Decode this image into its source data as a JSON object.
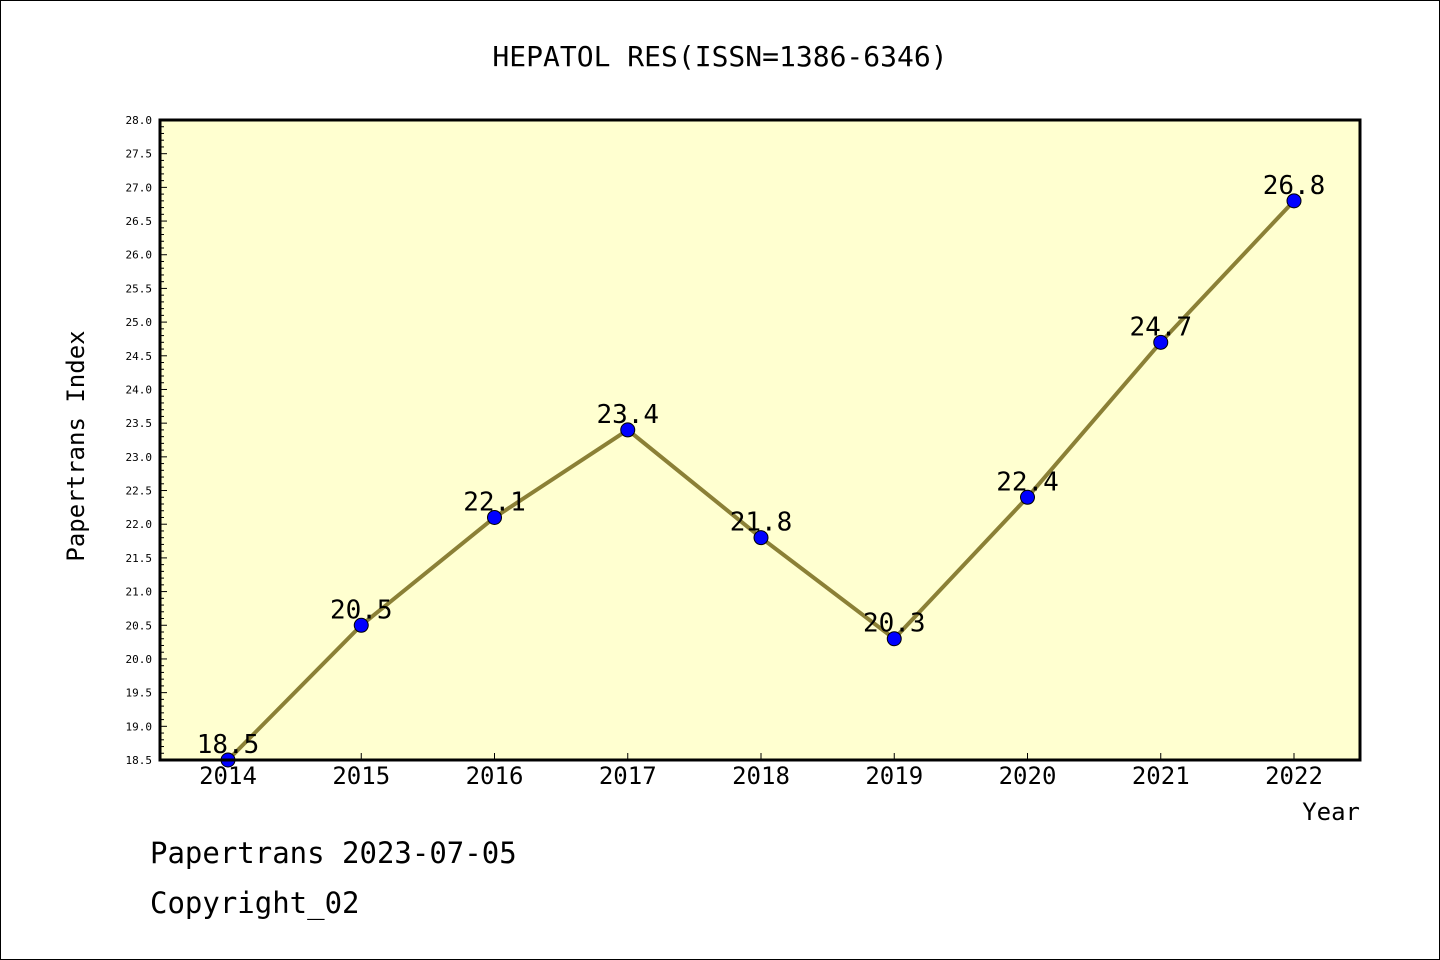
{
  "chart_data": {
    "type": "line",
    "title": "HEPATOL RES(ISSN=1386-6346)",
    "xlabel": "Year",
    "ylabel": "Papertrans Index",
    "categories": [
      "2014",
      "2015",
      "2016",
      "2017",
      "2018",
      "2019",
      "2020",
      "2021",
      "2022"
    ],
    "values": [
      18.5,
      20.5,
      22.1,
      23.4,
      21.8,
      20.3,
      22.4,
      24.7,
      26.8
    ],
    "data_labels": [
      "18.5",
      "20.5",
      "22.1",
      "23.4",
      "21.8",
      "20.3",
      "22.4",
      "24.7",
      "26.8"
    ],
    "ylim": [
      18.5,
      28.0
    ],
    "ytick_step": 0.5,
    "grid": false,
    "line_color": "#8b8036",
    "marker_color": "#0000ff",
    "plot_background": "#ffffd0"
  },
  "footer": {
    "line1": "Papertrans 2023-07-05",
    "line2": "Copyright_02"
  }
}
